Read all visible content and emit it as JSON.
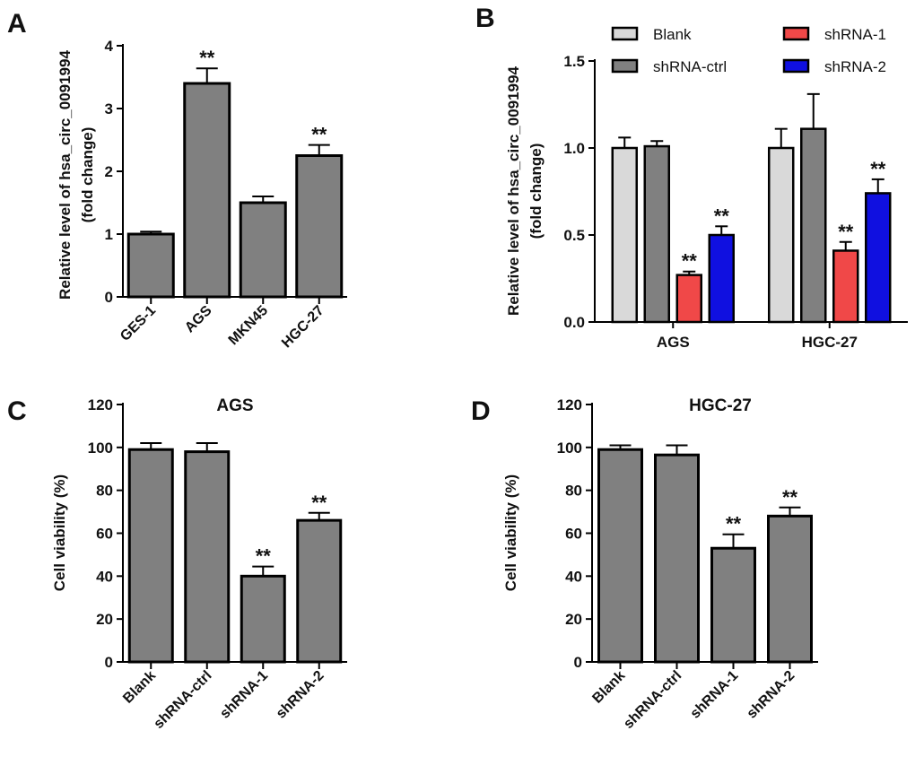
{
  "chart_data": [
    {
      "panel": "A",
      "type": "bar",
      "title": "",
      "ylabel": [
        "Relative level of hsa_circ_0091994",
        "(fold change)"
      ],
      "ylim": [
        0,
        4
      ],
      "yticks": [
        0,
        1,
        2,
        3,
        4
      ],
      "categories": [
        "GES-1",
        "AGS",
        "MKN45",
        "HGC-27"
      ],
      "values": [
        1.0,
        3.4,
        1.5,
        2.25
      ],
      "errors": [
        0.04,
        0.24,
        0.1,
        0.17
      ],
      "annotations": [
        "",
        "**",
        "",
        "**"
      ],
      "colors": [
        "#808080",
        "#808080",
        "#808080",
        "#808080"
      ]
    },
    {
      "panel": "B",
      "type": "bar",
      "title": "",
      "ylabel": [
        "Relative  level of hsa_circ_0091994",
        "(fold change)"
      ],
      "ylim": [
        0,
        1.5
      ],
      "yticks": [
        "0.0",
        "0.5",
        "1.0",
        "1.5"
      ],
      "categories": [
        "AGS",
        "HGC-27"
      ],
      "legend": [
        "Blank",
        "shRNA-1",
        "shRNA-ctrl",
        "shRNA-2"
      ],
      "series": [
        {
          "name": "Blank",
          "color": "#d9d9d9",
          "values": [
            1.0,
            1.0
          ],
          "errors": [
            0.06,
            0.11
          ],
          "annotations": [
            "",
            ""
          ]
        },
        {
          "name": "shRNA-ctrl",
          "color": "#808080",
          "values": [
            1.01,
            1.11
          ],
          "errors": [
            0.03,
            0.2
          ],
          "annotations": [
            "",
            ""
          ]
        },
        {
          "name": "shRNA-1",
          "color": "#f04848",
          "values": [
            0.27,
            0.41
          ],
          "errors": [
            0.02,
            0.05
          ],
          "annotations": [
            "**",
            "**"
          ]
        },
        {
          "name": "shRNA-2",
          "color": "#1010e0",
          "values": [
            0.5,
            0.74
          ],
          "errors": [
            0.05,
            0.08
          ],
          "annotations": [
            "**",
            "**"
          ]
        }
      ]
    },
    {
      "panel": "C",
      "type": "bar",
      "title": "AGS",
      "ylabel": [
        "Cell viability (%)"
      ],
      "ylim": [
        0,
        120
      ],
      "yticks": [
        0,
        20,
        40,
        60,
        80,
        100,
        120
      ],
      "categories": [
        "Blank",
        "shRNA-ctrl",
        "shRNA-1",
        "shRNA-2"
      ],
      "values": [
        99,
        98,
        40,
        66
      ],
      "errors": [
        3,
        4,
        4.5,
        3.5
      ],
      "annotations": [
        "",
        "",
        "**",
        "**"
      ],
      "colors": [
        "#808080",
        "#808080",
        "#808080",
        "#808080"
      ]
    },
    {
      "panel": "D",
      "type": "bar",
      "title": "HGC-27",
      "ylabel": [
        "Cell viability (%)"
      ],
      "ylim": [
        0,
        120
      ],
      "yticks": [
        0,
        20,
        40,
        60,
        80,
        100,
        120
      ],
      "categories": [
        "Blank",
        "shRNA-ctrl",
        "shRNA-1",
        "shRNA-2"
      ],
      "values": [
        99,
        96.5,
        53,
        68
      ],
      "errors": [
        2,
        4.5,
        6.5,
        4
      ],
      "annotations": [
        "",
        "",
        "**",
        "**"
      ],
      "colors": [
        "#808080",
        "#808080",
        "#808080",
        "#808080"
      ]
    }
  ]
}
